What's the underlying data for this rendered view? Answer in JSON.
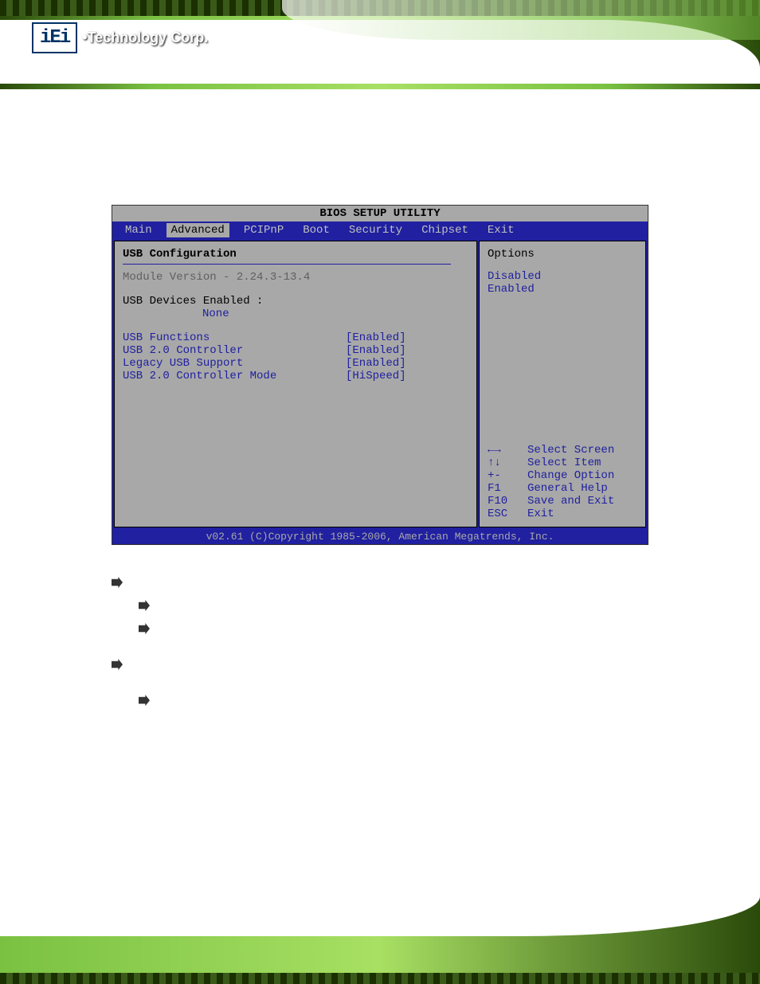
{
  "header": {
    "logo_box": "iEi",
    "logo_text": "•Technology Corp."
  },
  "bios": {
    "title": "BIOS SETUP UTILITY",
    "tabs": [
      "Main",
      "Advanced",
      "PCIPnP",
      "Boot",
      "Security",
      "Chipset",
      "Exit"
    ],
    "active_tab_index": 1,
    "main": {
      "section_title": "USB Configuration",
      "module_version": "Module Version - 2.24.3-13.4",
      "devices_label": "USB Devices Enabled :",
      "devices_value": "None",
      "settings": [
        {
          "label": "USB Functions",
          "value": "[Enabled]"
        },
        {
          "label": "USB 2.0 Controller",
          "value": "[Enabled]"
        },
        {
          "label": "Legacy USB Support",
          "value": "[Enabled]"
        },
        {
          "label": "USB 2.0 Controller Mode",
          "value": "[HiSpeed]"
        }
      ]
    },
    "side": {
      "options_title": "Options",
      "options": [
        "Disabled",
        "Enabled"
      ],
      "help": [
        {
          "key": "←→",
          "text": "Select Screen"
        },
        {
          "key": "↑↓",
          "text": "Select Item"
        },
        {
          "key": "+-",
          "text": "Change Option"
        },
        {
          "key": "F1",
          "text": "General Help"
        },
        {
          "key": "F10",
          "text": "Save and Exit"
        },
        {
          "key": "ESC",
          "text": "Exit"
        }
      ]
    },
    "footer": "v02.61 (C)Copyright 1985-2006, American Megatrends, Inc."
  },
  "colors": {
    "bios_blue": "#2020a0",
    "bios_gray": "#a8a8a8",
    "banner_green_light": "#a8e063",
    "banner_green": "#7ac142",
    "banner_green_dark": "#2a4a0a"
  }
}
